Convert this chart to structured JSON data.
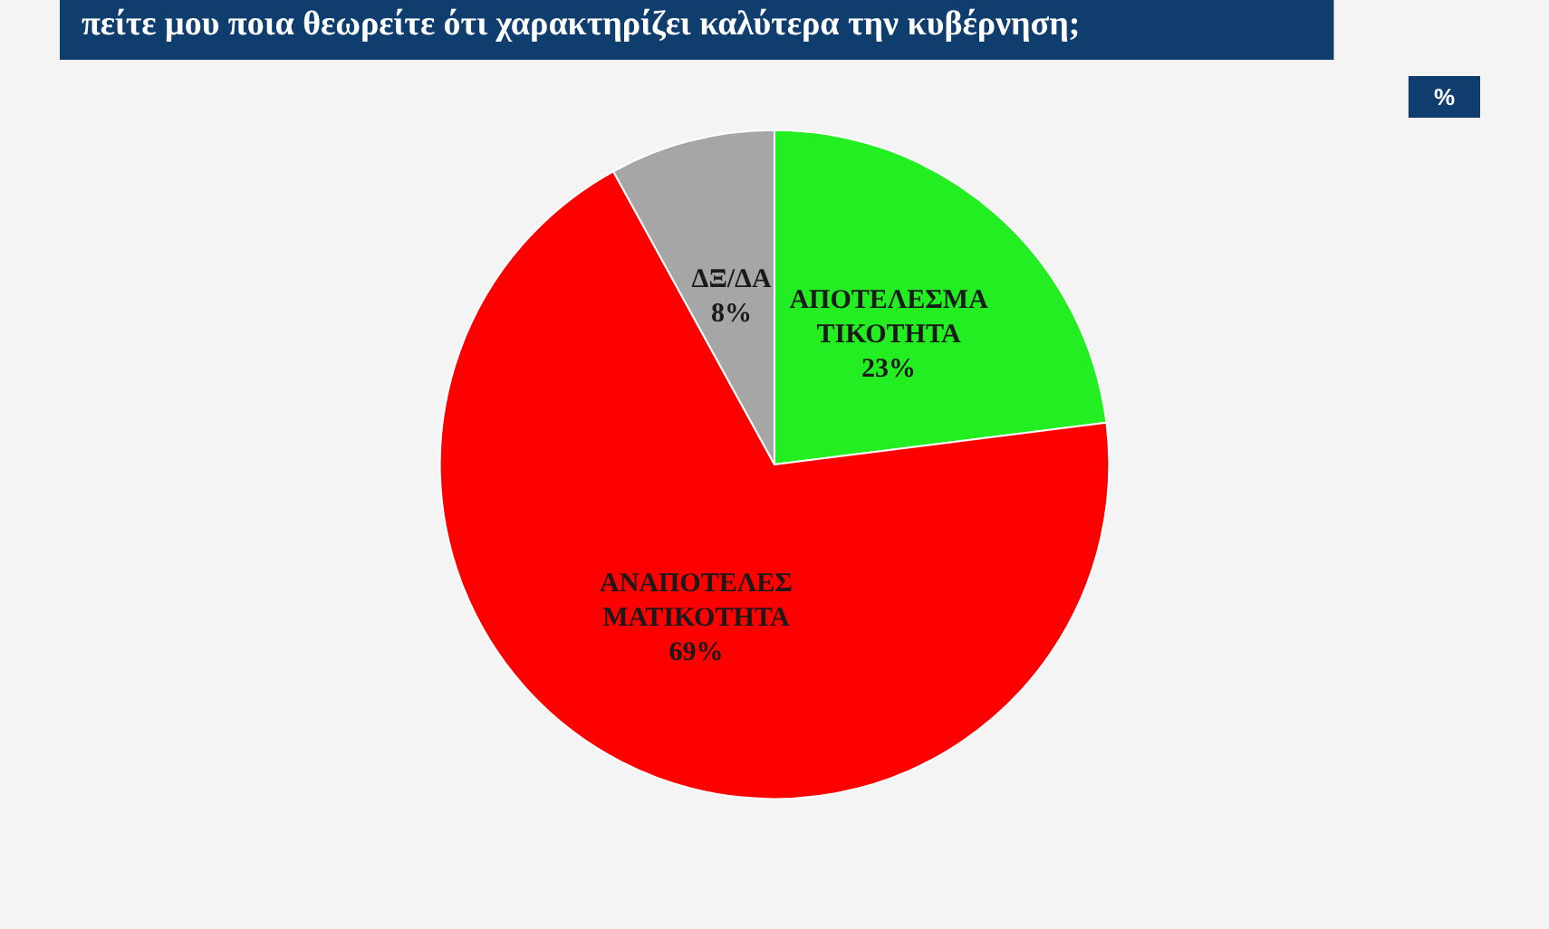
{
  "chart_data": {
    "type": "pie",
    "title": "πείτε μου ποια θεωρείτε ότι χαρακτηρίζει καλύτερα την κυβέρνηση;",
    "subtitle": "%",
    "categories": [
      "ΑΠΟΤΕΛΕΣΜΑΤΙΚΟΤΗΤΑ",
      "ΑΝΑΠΟΤΕΛΕΣΜΑΤΙΚΟΤΗΤΑ",
      "ΔΞ/ΔΑ"
    ],
    "values": [
      23,
      69,
      8
    ],
    "colors": [
      "#22ee22",
      "#ff0000",
      "#a6a6a6"
    ],
    "value_labels": [
      "23%",
      "69%",
      "8%"
    ]
  }
}
